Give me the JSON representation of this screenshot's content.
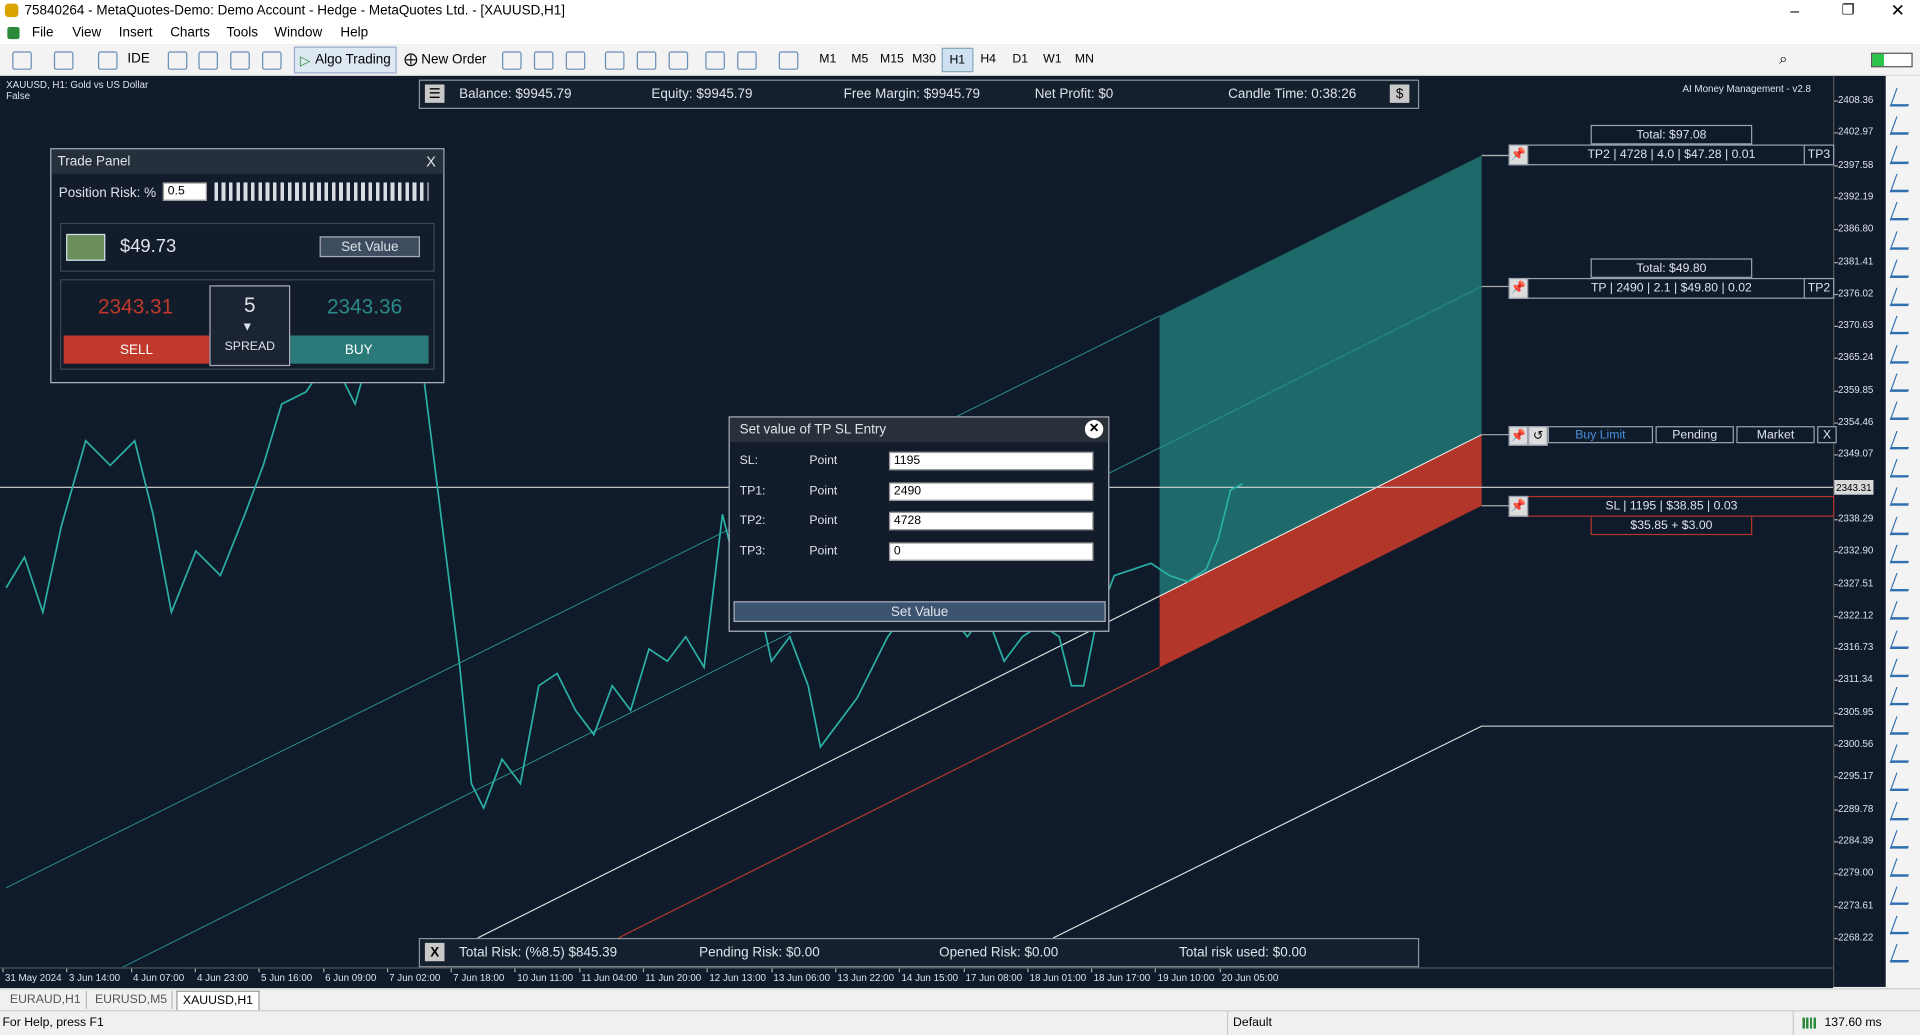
{
  "window": {
    "title": "75840264 - MetaQuotes-Demo: Demo Account - Hedge - MetaQuotes Ltd. - [XAUUSD,H1]"
  },
  "menu": [
    "File",
    "View",
    "Insert",
    "Charts",
    "Tools",
    "Window",
    "Help"
  ],
  "toolbar": {
    "ide": "IDE",
    "algo_trading": "Algo Trading",
    "new_order": "New Order",
    "timeframes": [
      "M1",
      "M5",
      "M15",
      "M30",
      "H1",
      "H4",
      "D1",
      "W1",
      "MN"
    ],
    "active_timeframe": 4
  },
  "chart": {
    "symbol": "XAUUSD, H1:  Gold vs US Dollar",
    "flag": "False",
    "indicator": "AI Money Management - v2.8",
    "current_price": "2343.31",
    "price_axis": [
      "2408.36",
      "2402.97",
      "2397.58",
      "2392.19",
      "2386.80",
      "2381.41",
      "2376.02",
      "2370.63",
      "2365.24",
      "2359.85",
      "2354.46",
      "2349.07",
      "2338.29",
      "2332.90",
      "2327.51",
      "2322.12",
      "2316.73",
      "2311.34",
      "2305.95",
      "2300.56",
      "2295.17",
      "2289.78",
      "2284.39",
      "2279.00",
      "2273.61",
      "2268.22"
    ],
    "time_axis": [
      "31 May 2024",
      "3 Jun 14:00",
      "4 Jun 07:00",
      "4 Jun 23:00",
      "5 Jun 16:00",
      "6 Jun 09:00",
      "7 Jun 02:00",
      "7 Jun 18:00",
      "10 Jun 11:00",
      "11 Jun 04:00",
      "11 Jun 20:00",
      "12 Jun 13:00",
      "13 Jun 06:00",
      "13 Jun 22:00",
      "14 Jun 15:00",
      "17 Jun 08:00",
      "18 Jun 01:00",
      "18 Jun 17:00",
      "19 Jun 10:00",
      "20 Jun 05:00"
    ]
  },
  "top_bar": {
    "balance": "Balance: $9945.79",
    "equity": "Equity: $9945.79",
    "free_margin": "Free Margin: $9945.79",
    "net_profit": "Net Profit: $0",
    "candle_time": "Candle Time: 0:38:26",
    "button": "$"
  },
  "bottom_bar": {
    "close": "X",
    "total_risk": "Total Risk: (%8.5) $845.39",
    "pending_risk": "Pending Risk: $0.00",
    "opened_risk": "Opened Risk: $0.00",
    "total_risk_used": "Total risk used: $0.00"
  },
  "trade_panel": {
    "title": "Trade Panel",
    "close": "X",
    "risk_label": "Position Risk: %",
    "risk_value": "0.5",
    "amount": "$49.73",
    "set_value": "Set Value",
    "sell_price": "2343.31",
    "buy_price": "2343.36",
    "spread": "5",
    "spread_label": "SPREAD",
    "sell": "SELL",
    "buy": "BUY"
  },
  "dialog": {
    "title": "Set value of TP SL Entry",
    "rows": [
      [
        "SL:",
        "Point",
        "1195"
      ],
      [
        "TP1:",
        "Point",
        "2490"
      ],
      [
        "TP2:",
        "Point",
        "4728"
      ],
      [
        "TP3:",
        "Point",
        "0"
      ]
    ],
    "button": "Set Value"
  },
  "levels": {
    "tp3_total": "Total: $97.08",
    "tp3_text": "TP2 | 4728 | 4.0 | $47.28 | 0.01",
    "tp3_tag": "TP3",
    "tp2_total": "Total: $49.80",
    "tp2_text": "TP | 2490 | 2.1 | $49.80 | 0.02",
    "tp2_tag": "TP2",
    "entry_buttons": [
      "Buy Limit",
      "Pending",
      "Market",
      "X"
    ],
    "sl_text": "SL | 1195 | $38.85 | 0.03",
    "sl_sub": "$35.85 + $3.00"
  },
  "tabs": [
    "EURAUD,H1",
    "EURUSD,M5",
    "XAUUSD,H1"
  ],
  "active_tab": 2,
  "status": {
    "help": "For Help, press F1",
    "profile": "Default",
    "ping": "137.60 ms"
  }
}
